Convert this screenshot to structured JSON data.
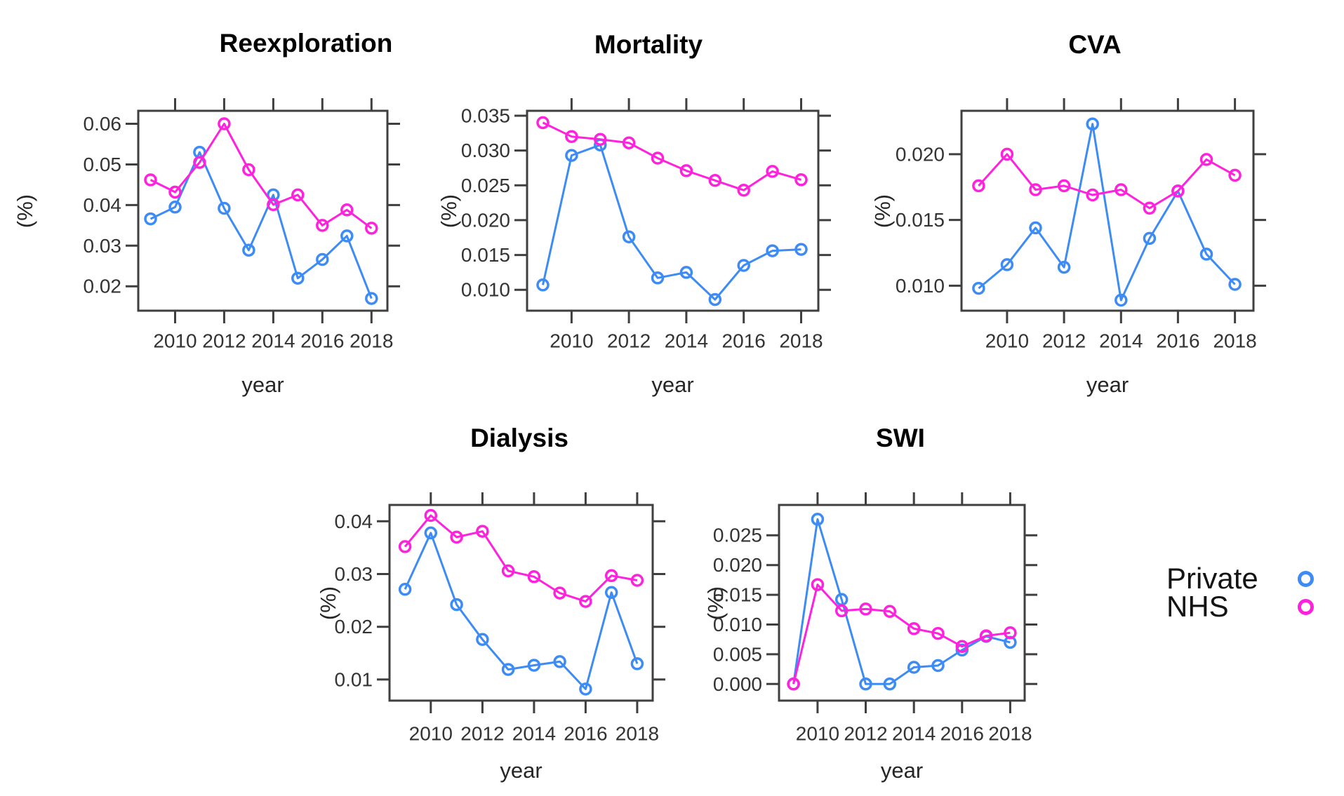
{
  "figure": {
    "background": "#ffffff"
  },
  "colors": {
    "private": "#3d8bf4",
    "nhs": "#ff22dd",
    "axis": "#3f3f3f",
    "tick_text": "#333333"
  },
  "legend": {
    "position": "right-middle",
    "items": [
      {
        "label": "Private",
        "color": "#3d8bf4",
        "marker": "open-circle"
      },
      {
        "label": "NHS",
        "color": "#ff22dd",
        "marker": "open-circle"
      }
    ]
  },
  "chart_data": [
    {
      "id": "reexploration",
      "type": "line",
      "title": "Reexploration",
      "xlabel": "year",
      "ylabel": "(%)",
      "grid": false,
      "legend_position": "none",
      "x": [
        2009,
        2010,
        2011,
        2012,
        2013,
        2014,
        2015,
        2016,
        2017,
        2018
      ],
      "xticks": [
        2010,
        2012,
        2014,
        2016,
        2018
      ],
      "xtick_labels": [
        "2010",
        "2012",
        "2014",
        "2016",
        "2018"
      ],
      "yticks": [
        0.02,
        0.03,
        0.04,
        0.05,
        0.06
      ],
      "ytick_labels": [
        "0.02",
        "0.03",
        "0.04",
        "0.05",
        "0.06"
      ],
      "xlim": [
        2008.5,
        2018.65
      ],
      "ylim": [
        0.014,
        0.0632
      ],
      "series": [
        {
          "name": "Private",
          "color": "#3d8bf4",
          "values": [
            0.0366,
            0.0395,
            0.053,
            0.0392,
            0.0289,
            0.0425,
            0.022,
            0.0266,
            0.0324,
            0.017
          ]
        },
        {
          "name": "NHS",
          "color": "#ff22dd",
          "values": [
            0.0462,
            0.0432,
            0.0505,
            0.06,
            0.0487,
            0.0401,
            0.0425,
            0.035,
            0.0388,
            0.0343
          ]
        }
      ]
    },
    {
      "id": "mortality",
      "type": "line",
      "title": "Mortality",
      "xlabel": "year",
      "ylabel": "(%)",
      "grid": false,
      "legend_position": "none",
      "x": [
        2009,
        2010,
        2011,
        2012,
        2013,
        2014,
        2015,
        2016,
        2017,
        2018
      ],
      "xticks": [
        2010,
        2012,
        2014,
        2016,
        2018
      ],
      "xtick_labels": [
        "2010",
        "2012",
        "2014",
        "2016",
        "2018"
      ],
      "yticks": [
        0.01,
        0.015,
        0.02,
        0.025,
        0.03,
        0.035
      ],
      "ytick_labels": [
        "0.010",
        "0.015",
        "0.020",
        "0.025",
        "0.030",
        "0.035"
      ],
      "xlim": [
        2008.45,
        2018.6
      ],
      "ylim": [
        0.007,
        0.0357
      ],
      "series": [
        {
          "name": "Private",
          "color": "#3d8bf4",
          "values": [
            0.0107,
            0.0293,
            0.0308,
            0.0176,
            0.0117,
            0.0125,
            0.0086,
            0.0135,
            0.0156,
            0.0158
          ]
        },
        {
          "name": "NHS",
          "color": "#ff22dd",
          "values": [
            0.034,
            0.032,
            0.0316,
            0.0311,
            0.0289,
            0.0271,
            0.0257,
            0.0243,
            0.027,
            0.0258
          ]
        }
      ]
    },
    {
      "id": "cva",
      "type": "line",
      "title": "CVA",
      "xlabel": "year",
      "ylabel": "(%)",
      "grid": false,
      "legend_position": "none",
      "x": [
        2009,
        2010,
        2011,
        2012,
        2013,
        2014,
        2015,
        2016,
        2017,
        2018
      ],
      "xticks": [
        2010,
        2012,
        2014,
        2016,
        2018
      ],
      "xtick_labels": [
        "2010",
        "2012",
        "2014",
        "2016",
        "2018"
      ],
      "yticks": [
        0.01,
        0.015,
        0.02
      ],
      "ytick_labels": [
        "0.010",
        "0.015",
        "0.020"
      ],
      "xlim": [
        2008.4,
        2018.65
      ],
      "ylim": [
        0.0081,
        0.0233
      ],
      "series": [
        {
          "name": "Private",
          "color": "#3d8bf4",
          "values": [
            0.0098,
            0.0116,
            0.0144,
            0.0114,
            0.0223,
            0.0089,
            0.0136,
            0.0172,
            0.0124,
            0.0101
          ]
        },
        {
          "name": "NHS",
          "color": "#ff22dd",
          "values": [
            0.0176,
            0.02,
            0.0173,
            0.0176,
            0.0169,
            0.0173,
            0.0159,
            0.0172,
            0.0196,
            0.0184
          ]
        }
      ]
    },
    {
      "id": "dialysis",
      "type": "line",
      "title": "Dialysis",
      "xlabel": "year",
      "ylabel": "(%)",
      "grid": false,
      "legend_position": "none",
      "x": [
        2009,
        2010,
        2011,
        2012,
        2013,
        2014,
        2015,
        2016,
        2017,
        2018
      ],
      "xticks": [
        2010,
        2012,
        2014,
        2016,
        2018
      ],
      "xtick_labels": [
        "2010",
        "2012",
        "2014",
        "2016",
        "2018"
      ],
      "yticks": [
        0.01,
        0.02,
        0.03,
        0.04
      ],
      "ytick_labels": [
        "0.01",
        "0.02",
        "0.03",
        "0.04"
      ],
      "xlim": [
        2008.4,
        2018.6
      ],
      "ylim": [
        0.006,
        0.0431
      ],
      "series": [
        {
          "name": "Private",
          "color": "#3d8bf4",
          "values": [
            0.0271,
            0.0378,
            0.0242,
            0.0176,
            0.0119,
            0.0127,
            0.0134,
            0.0082,
            0.0265,
            0.013
          ]
        },
        {
          "name": "NHS",
          "color": "#ff22dd",
          "values": [
            0.0352,
            0.0411,
            0.037,
            0.0381,
            0.0306,
            0.0295,
            0.0264,
            0.0248,
            0.0297,
            0.0288
          ]
        }
      ]
    },
    {
      "id": "swi",
      "type": "line",
      "title": "SWI",
      "xlabel": "year",
      "ylabel": "(%)",
      "grid": false,
      "legend_position": "none",
      "x": [
        2009,
        2010,
        2011,
        2012,
        2013,
        2014,
        2015,
        2016,
        2017,
        2018
      ],
      "xticks": [
        2010,
        2012,
        2014,
        2016,
        2018
      ],
      "xtick_labels": [
        "2010",
        "2012",
        "2014",
        "2016",
        "2018"
      ],
      "yticks": [
        0.0,
        0.005,
        0.01,
        0.015,
        0.02,
        0.025
      ],
      "ytick_labels": [
        "0.000",
        "0.005",
        "0.010",
        "0.015",
        "0.020",
        "0.025"
      ],
      "xlim": [
        2008.4,
        2018.6
      ],
      "ylim": [
        -0.0028,
        0.0301
      ],
      "series": [
        {
          "name": "Private",
          "color": "#3d8bf4",
          "values": [
            0.0,
            0.0277,
            0.0142,
            0.0,
            0.0,
            0.0028,
            0.0031,
            0.0057,
            0.008,
            0.007
          ]
        },
        {
          "name": "NHS",
          "color": "#ff22dd",
          "values": [
            0.0,
            0.0167,
            0.0123,
            0.0126,
            0.0122,
            0.0093,
            0.0085,
            0.0063,
            0.0081,
            0.0086
          ]
        }
      ]
    }
  ]
}
